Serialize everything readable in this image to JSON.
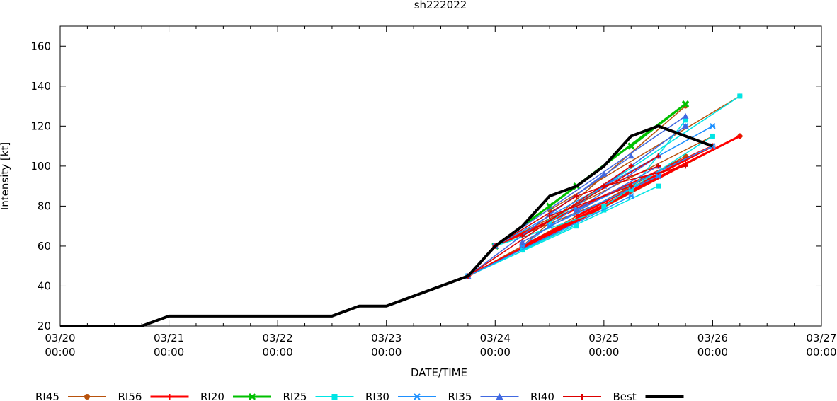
{
  "chart_data": {
    "type": "line",
    "title": "sh222022",
    "xlabel": "DATE/TIME",
    "ylabel": "Intensity [kt]",
    "ylim": [
      20,
      170
    ],
    "xlim": [
      0,
      7
    ],
    "y_ticks": [
      20,
      40,
      60,
      80,
      100,
      120,
      140,
      160
    ],
    "x_ticks": [
      {
        "x": 0,
        "date": "03/20",
        "time": "00:00"
      },
      {
        "x": 1,
        "date": "03/21",
        "time": "00:00"
      },
      {
        "x": 2,
        "date": "03/22",
        "time": "00:00"
      },
      {
        "x": 3,
        "date": "03/23",
        "time": "00:00"
      },
      {
        "x": 4,
        "date": "03/24",
        "time": "00:00"
      },
      {
        "x": 5,
        "date": "03/25",
        "time": "00:00"
      },
      {
        "x": 6,
        "date": "03/26",
        "time": "00:00"
      },
      {
        "x": 7,
        "date": "03/27",
        "time": "00:00"
      }
    ],
    "x_units": "days since 03/20 00:00",
    "series": [
      {
        "name": "RI45",
        "color": "#b8520c",
        "marker": "circle",
        "lines": [
          [
            [
              3.75,
              45
            ],
            [
              5.75,
              105
            ]
          ],
          [
            [
              4.0,
              60
            ],
            [
              6.0,
              115
            ]
          ],
          [
            [
              4.25,
              58
            ],
            [
              6.25,
              115
            ]
          ],
          [
            [
              4.0,
              60
            ],
            [
              5.25,
              88
            ]
          ],
          [
            [
              4.25,
              60
            ],
            [
              5.75,
              130
            ]
          ],
          [
            [
              4.5,
              78
            ],
            [
              6.25,
              135
            ]
          ]
        ]
      },
      {
        "name": "RI56",
        "color": "#ff0000",
        "marker": "plus",
        "width": 3,
        "lines": [
          [
            [
              3.75,
              45
            ],
            [
              5.75,
              101
            ]
          ],
          [
            [
              4.0,
              60
            ],
            [
              6.0,
              110
            ]
          ],
          [
            [
              4.25,
              60
            ],
            [
              6.25,
              115
            ]
          ],
          [
            [
              4.5,
              65
            ],
            [
              5.5,
              95
            ]
          ],
          [
            [
              4.75,
              75
            ],
            [
              6.0,
              110
            ]
          ]
        ]
      },
      {
        "name": "RI20",
        "color": "#00c000",
        "marker": "x",
        "width": 3,
        "lines": [
          [
            [
              4.0,
              60
            ],
            [
              4.75,
              90
            ]
          ],
          [
            [
              4.5,
              80
            ],
            [
              5.75,
              131
            ]
          ],
          [
            [
              5.25,
              110
            ],
            [
              5.75,
              131
            ]
          ]
        ]
      },
      {
        "name": "RI25",
        "color": "#00e5e5",
        "marker": "square",
        "lines": [
          [
            [
              3.75,
              45
            ],
            [
              4.75,
              70
            ]
          ],
          [
            [
              4.0,
              60
            ],
            [
              5.0,
              78
            ]
          ],
          [
            [
              4.25,
              58
            ],
            [
              5.5,
              90
            ]
          ],
          [
            [
              4.5,
              72
            ],
            [
              6.25,
              135
            ]
          ],
          [
            [
              5.0,
              80
            ],
            [
              6.0,
              115
            ]
          ],
          [
            [
              5.25,
              88
            ],
            [
              5.75,
              123
            ]
          ]
        ]
      },
      {
        "name": "RI30",
        "color": "#1e90ff",
        "marker": "star",
        "lines": [
          [
            [
              3.75,
              45
            ],
            [
              5.25,
              85
            ]
          ],
          [
            [
              4.0,
              60
            ],
            [
              6.0,
              120
            ]
          ],
          [
            [
              4.25,
              60
            ],
            [
              5.75,
              120
            ]
          ],
          [
            [
              4.5,
              70
            ],
            [
              5.5,
              95
            ]
          ],
          [
            [
              4.75,
              78
            ],
            [
              6.0,
              110
            ]
          ]
        ]
      },
      {
        "name": "RI35",
        "color": "#4169e1",
        "marker": "triangle",
        "lines": [
          [
            [
              3.75,
              45
            ],
            [
              5.0,
              96
            ]
          ],
          [
            [
              4.0,
              60
            ],
            [
              5.75,
              125
            ]
          ],
          [
            [
              4.25,
              62
            ],
            [
              5.5,
              100
            ]
          ],
          [
            [
              4.5,
              76
            ],
            [
              5.25,
              105
            ]
          ],
          [
            [
              4.75,
              78
            ],
            [
              5.5,
              105
            ]
          ],
          [
            [
              5.0,
              90
            ],
            [
              5.75,
              120
            ]
          ]
        ]
      },
      {
        "name": "RI40",
        "color": "#dd0000",
        "marker": "plus",
        "lines": [
          [
            [
              3.75,
              45
            ],
            [
              5.25,
              100
            ]
          ],
          [
            [
              4.0,
              60
            ],
            [
              4.75,
              85
            ]
          ],
          [
            [
              4.25,
              65
            ],
            [
              5.5,
              105
            ]
          ],
          [
            [
              4.5,
              75
            ],
            [
              5.25,
              90
            ]
          ],
          [
            [
              4.75,
              85
            ],
            [
              5.5,
              100
            ]
          ],
          [
            [
              5.0,
              90
            ],
            [
              5.75,
              100
            ]
          ]
        ]
      },
      {
        "name": "Best",
        "color": "#000000",
        "marker": "none",
        "width": 4,
        "lines": [
          [
            [
              0,
              20
            ],
            [
              0.75,
              20
            ],
            [
              1.0,
              25
            ],
            [
              2.5,
              25
            ],
            [
              2.75,
              30
            ],
            [
              3.0,
              30
            ],
            [
              3.25,
              35
            ],
            [
              3.5,
              40
            ],
            [
              3.75,
              45
            ],
            [
              4.0,
              60
            ],
            [
              4.25,
              70
            ],
            [
              4.5,
              85
            ],
            [
              4.75,
              90
            ],
            [
              5.0,
              100
            ],
            [
              5.25,
              115
            ],
            [
              5.5,
              120
            ],
            [
              6.0,
              110
            ]
          ]
        ]
      }
    ]
  }
}
